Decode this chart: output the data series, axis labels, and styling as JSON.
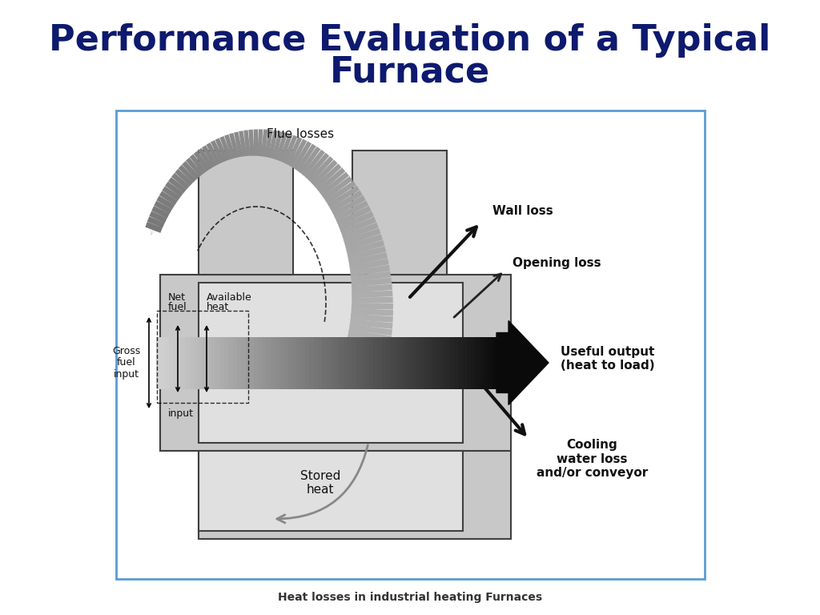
{
  "title_line1": "Performance Evaluation of a Typical",
  "title_line2": "Furnace",
  "title_color": "#0d1a6e",
  "title_fontsize": 32,
  "subtitle": "Heat losses in industrial heating Furnaces",
  "subtitle_fontsize": 10,
  "bg_color": "#ffffff",
  "light_gray": "#c8c8c8",
  "mid_gray": "#a0a0a0",
  "dark_gray": "#606060",
  "edge_color": "#404040",
  "frame_border_color": "#5b9bd5",
  "labels": {
    "flue_losses": "Flue losses",
    "wall_loss": "Wall loss",
    "opening_loss": "Opening loss",
    "useful_output": "Useful output\n(heat to load)",
    "stored_heat": "Stored\nheat",
    "cooling_water": "Cooling\nwater loss\nand/or conveyor",
    "gross_fuel": "Gross\nfuel\ninput",
    "net_fuel": "Net\nfuel",
    "input_label": "input",
    "available_heat": "Available\nheat"
  }
}
